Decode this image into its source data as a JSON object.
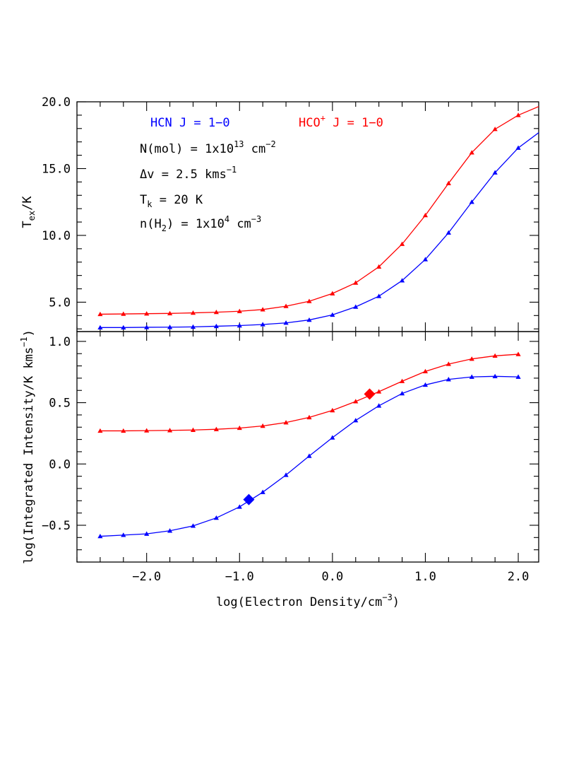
{
  "chart_data": [
    {
      "type": "line",
      "panel": "top",
      "xlabel": "",
      "ylabel": "T_ex/K",
      "ylim": [
        2.8,
        20.0
      ],
      "xlim": [
        -2.75,
        2.22
      ],
      "y_ticks": [
        "5.0",
        "10.0",
        "15.0",
        "20.0"
      ],
      "x": [
        -2.5,
        -2.25,
        -2.0,
        -1.75,
        -1.5,
        -1.25,
        -1.0,
        -0.75,
        -0.5,
        -0.25,
        0.0,
        0.25,
        0.5,
        0.75,
        1.0,
        1.25,
        1.5,
        1.75,
        2.0
      ],
      "series": [
        {
          "name": "HCN J = 1-0",
          "color": "#0000ff",
          "marker": "triangle",
          "values": [
            3.1,
            3.1,
            3.12,
            3.13,
            3.15,
            3.2,
            3.25,
            3.33,
            3.45,
            3.67,
            4.05,
            4.65,
            5.45,
            6.62,
            8.2,
            10.2,
            12.5,
            14.7,
            16.55
          ]
        },
        {
          "name": "HCO+ J = 1-0",
          "color": "#ff0000",
          "marker": "triangle",
          "values": [
            4.1,
            4.12,
            4.14,
            4.16,
            4.2,
            4.25,
            4.32,
            4.45,
            4.7,
            5.07,
            5.65,
            6.45,
            7.65,
            9.35,
            11.5,
            13.9,
            16.2,
            17.95,
            19.0
          ]
        }
      ],
      "legend": {
        "hcn": {
          "pre": "HCN J = 1",
          "dash": "−",
          "post": "0"
        },
        "hco": {
          "base": "HCO",
          "sup": "+",
          "rest": " J = 1",
          "dash": "−",
          "post": "0"
        }
      },
      "annotations": {
        "nmol": {
          "pre": "N(mol) = 1x10",
          "exp": "13",
          "unit": " cm",
          "unit_exp": "−2"
        },
        "dv": {
          "pre": "Δv = 2.5 kms",
          "exp": "−1"
        },
        "tk": {
          "pre": "T",
          "sub": "k",
          "post": " = 20 K"
        },
        "nh2": {
          "pre": "n(H",
          "sub": "2",
          "mid": ") = 1x10",
          "exp": "4",
          "unit": " cm",
          "unit_exp": "−3"
        }
      },
      "ylabel_parts": {
        "pre": "T",
        "sub": "ex",
        "post": "/K"
      }
    },
    {
      "type": "line",
      "panel": "bottom",
      "xlabel_parts": {
        "pre": "log(Electron Density/cm",
        "exp": "−3",
        "post": ")"
      },
      "ylabel_parts": {
        "pre": "log(Integrated Intensity/K kms",
        "exp": "−1",
        "post": ")"
      },
      "ylim": [
        -0.8,
        1.08
      ],
      "xlim": [
        -2.75,
        2.22
      ],
      "y_ticks": [
        "−0.5",
        "0.0",
        "0.5",
        "1.0"
      ],
      "x_ticks": [
        "−2.0",
        "−1.0",
        "0.0",
        "1.0",
        "2.0"
      ],
      "x": [
        -2.5,
        -2.25,
        -2.0,
        -1.75,
        -1.5,
        -1.25,
        -1.0,
        -0.75,
        -0.5,
        -0.25,
        0.0,
        0.25,
        0.5,
        0.75,
        1.0,
        1.25,
        1.5,
        1.75,
        2.0
      ],
      "series": [
        {
          "name": "HCN J = 1-0",
          "color": "#0000ff",
          "marker": "triangle",
          "values": [
            -0.59,
            -0.58,
            -0.57,
            -0.545,
            -0.505,
            -0.44,
            -0.35,
            -0.23,
            -0.09,
            0.065,
            0.215,
            0.355,
            0.475,
            0.575,
            0.645,
            0.69,
            0.71,
            0.715,
            0.71
          ],
          "highlight": {
            "x": -0.9,
            "y": -0.29
          }
        },
        {
          "name": "HCO+ J = 1-0",
          "color": "#ff0000",
          "marker": "triangle",
          "values": [
            0.27,
            0.27,
            0.272,
            0.274,
            0.277,
            0.283,
            0.293,
            0.31,
            0.338,
            0.38,
            0.437,
            0.51,
            0.59,
            0.675,
            0.755,
            0.815,
            0.857,
            0.882,
            0.895
          ],
          "highlight": {
            "x": 0.4,
            "y": 0.57
          }
        }
      ]
    }
  ]
}
